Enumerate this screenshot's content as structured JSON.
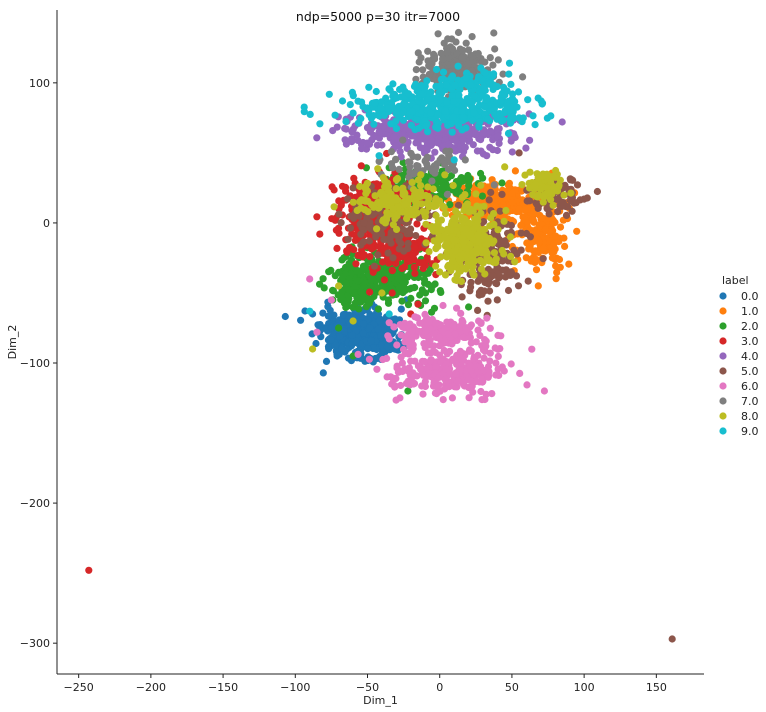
{
  "chart_data": {
    "type": "scatter",
    "title": "ndp=5000 p=30 itr=7000",
    "xlabel": "Dim_1",
    "ylabel": "Dim_2",
    "xlim": [
      -265,
      183
    ],
    "ylim": [
      -322,
      152
    ],
    "xticks": [
      -250,
      -200,
      -150,
      -100,
      -50,
      0,
      50,
      100,
      150
    ],
    "yticks": [
      -300,
      -200,
      -100,
      0,
      100
    ],
    "grid": false,
    "legend": {
      "title": "label",
      "placement": "right"
    },
    "series": [
      {
        "name": "0.0",
        "color": "#1f77b4",
        "clusters": [
          {
            "center": [
              -55,
              -80
            ],
            "spread": [
              13,
              9
            ],
            "count": 420
          }
        ],
        "points": [
          [
            -88,
            -65
          ],
          [
            -25,
            -88
          ],
          [
            -40,
            -96
          ],
          [
            -75,
            -75
          ],
          [
            -45,
            -60
          ]
        ]
      },
      {
        "name": "1.0",
        "color": "#ff7f0e",
        "clusters": [
          {
            "center": [
              40,
              15
            ],
            "spread": [
              17,
              7
            ],
            "count": 260
          },
          {
            "center": [
              70,
              -10
            ],
            "spread": [
              8,
              12
            ],
            "count": 150
          }
        ],
        "points": [
          [
            78,
            -25
          ],
          [
            20,
            28
          ],
          [
            55,
            10
          ]
        ]
      },
      {
        "name": "2.0",
        "color": "#2ca02c",
        "clusters": [
          {
            "center": [
              -38,
              -38
            ],
            "spread": [
              16,
              9
            ],
            "count": 300
          },
          {
            "center": [
              -8,
              28
            ],
            "spread": [
              18,
              7
            ],
            "count": 130
          },
          {
            "center": [
              -60,
              -52
            ],
            "spread": [
              6,
              5
            ],
            "count": 40
          }
        ],
        "points": [
          [
            -22,
            -120
          ],
          [
            -60,
            -95
          ],
          [
            20,
            -60
          ],
          [
            15,
            60
          ],
          [
            -70,
            -75
          ],
          [
            -5,
            -45
          ]
        ]
      },
      {
        "name": "3.0",
        "color": "#d62728",
        "clusters": [
          {
            "center": [
              -45,
              8
            ],
            "spread": [
              13,
              14
            ],
            "count": 320
          },
          {
            "center": [
              -28,
              -18
            ],
            "spread": [
              13,
              8
            ],
            "count": 150
          }
        ],
        "points": [
          [
            -243,
            -248
          ],
          [
            -15,
            -58
          ],
          [
            -65,
            -12
          ],
          [
            32,
            85
          ],
          [
            -20,
            -65
          ]
        ]
      },
      {
        "name": "4.0",
        "color": "#9467bd",
        "clusters": [
          {
            "center": [
              -5,
              65
            ],
            "spread": [
              27,
              7
            ],
            "count": 380
          }
        ],
        "points": [
          [
            -48,
            65
          ],
          [
            40,
            62
          ],
          [
            -30,
            55
          ]
        ]
      },
      {
        "name": "5.0",
        "color": "#8c564b",
        "clusters": [
          {
            "center": [
              35,
              -25
            ],
            "spread": [
              12,
              16
            ],
            "count": 170
          },
          {
            "center": [
              -35,
              0
            ],
            "spread": [
              16,
              10
            ],
            "count": 130
          },
          {
            "center": [
              80,
              20
            ],
            "spread": [
              10,
              7
            ],
            "count": 80
          }
        ],
        "points": [
          [
            161,
            -297
          ],
          [
            100,
            17
          ],
          [
            55,
            50
          ],
          [
            -60,
            25
          ],
          [
            20,
            75
          ],
          [
            50,
            80
          ]
        ]
      },
      {
        "name": "6.0",
        "color": "#e377c2",
        "clusters": [
          {
            "center": [
              5,
              -105
            ],
            "spread": [
              20,
              8
            ],
            "count": 280
          },
          {
            "center": [
              0,
              -78
            ],
            "spread": [
              15,
              6
            ],
            "count": 170
          }
        ],
        "points": [
          [
            -85,
            -78
          ],
          [
            -90,
            -40
          ],
          [
            -75,
            -55
          ],
          [
            35,
            -93
          ],
          [
            -20,
            -115
          ]
        ]
      },
      {
        "name": "7.0",
        "color": "#7f7f7f",
        "clusters": [
          {
            "center": [
              10,
              110
            ],
            "spread": [
              12,
              9
            ],
            "count": 200
          },
          {
            "center": [
              -10,
              40
            ],
            "spread": [
              14,
              7
            ],
            "count": 60
          }
        ],
        "points": [
          [
            35,
            118
          ],
          [
            -20,
            90
          ],
          [
            25,
            92
          ]
        ]
      },
      {
        "name": "8.0",
        "color": "#bcbd22",
        "clusters": [
          {
            "center": [
              18,
              -12
            ],
            "spread": [
              12,
              13
            ],
            "count": 280
          },
          {
            "center": [
              -30,
              15
            ],
            "spread": [
              14,
              8
            ],
            "count": 150
          },
          {
            "center": [
              75,
              25
            ],
            "spread": [
              8,
              6
            ],
            "count": 60
          }
        ],
        "points": [
          [
            -88,
            -90
          ],
          [
            -60,
            -70
          ],
          [
            -70,
            -45
          ],
          [
            0,
            -35
          ],
          [
            45,
            40
          ],
          [
            -40,
            -50
          ]
        ]
      },
      {
        "name": "9.0",
        "color": "#17becf",
        "clusters": [
          {
            "center": [
              0,
              82
            ],
            "spread": [
              30,
              7
            ],
            "count": 400
          },
          {
            "center": [
              20,
              100
            ],
            "spread": [
              18,
              5
            ],
            "count": 90
          }
        ],
        "points": [
          [
            -90,
            -63
          ],
          [
            -42,
            48
          ],
          [
            10,
            45
          ],
          [
            55,
            75
          ],
          [
            -35,
            -65
          ]
        ]
      }
    ]
  }
}
